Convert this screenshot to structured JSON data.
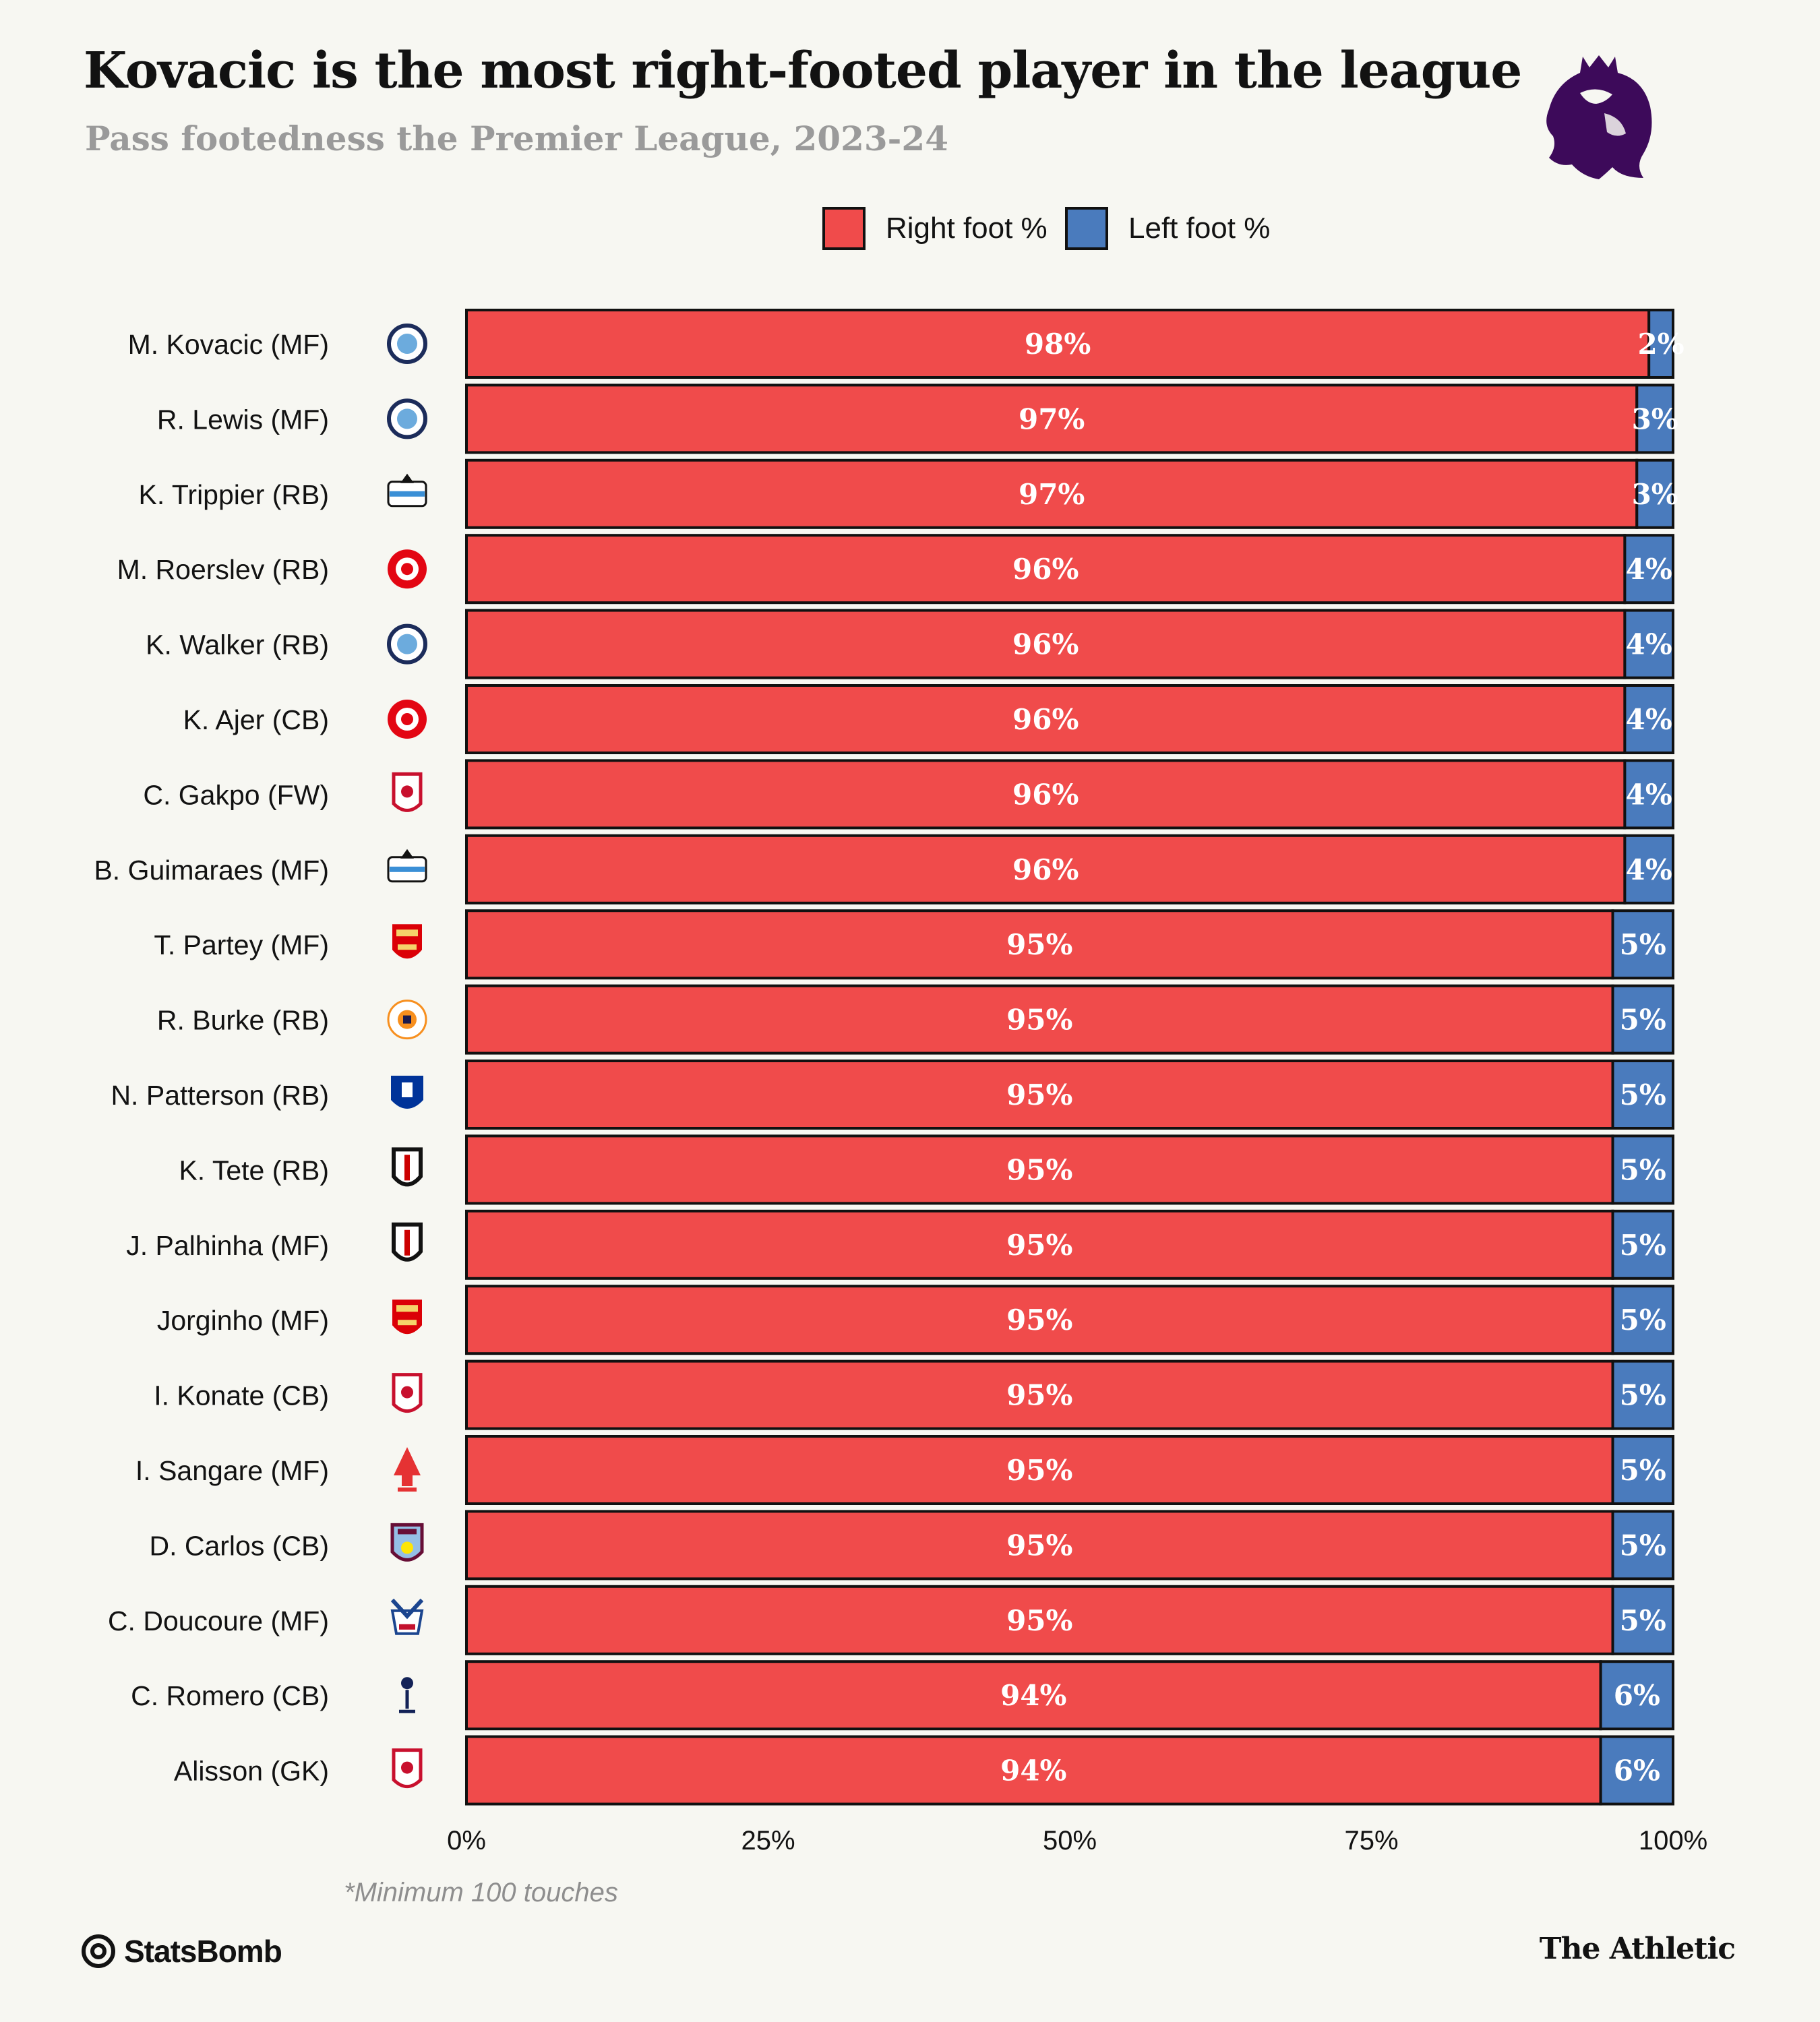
{
  "header": {
    "title": "Kovacic is the most right-footed player in the league",
    "subtitle": "Pass footedness the Premier League, 2023-24"
  },
  "legend": {
    "right_label": "Right foot %",
    "left_label": "Left foot %"
  },
  "colors": {
    "right": "#f04b4b",
    "left": "#4a7bbd",
    "background": "#f7f7f2",
    "premier_league_purple": "#3d0a5a"
  },
  "chart_data": {
    "type": "bar",
    "orientation": "horizontal",
    "stacked": true,
    "categories": [
      "M. Kovacic (MF)",
      "R. Lewis (MF)",
      "K. Trippier (RB)",
      "M. Roerslev (RB)",
      "K. Walker (RB)",
      "K. Ajer (CB)",
      "C. Gakpo (FW)",
      "B. Guimaraes (MF)",
      "T. Partey (MF)",
      "R. Burke (RB)",
      "N. Patterson (RB)",
      "K. Tete (RB)",
      "J. Palhinha (MF)",
      "Jorginho (MF)",
      "I. Konate (CB)",
      "I. Sangare (MF)",
      "D. Carlos (CB)",
      "C. Doucoure (MF)",
      "C. Romero (CB)",
      "Alisson (GK)"
    ],
    "clubs": [
      "Manchester City",
      "Manchester City",
      "Newcastle",
      "Brentford",
      "Manchester City",
      "Brentford",
      "Liverpool",
      "Newcastle",
      "Arsenal",
      "Luton Town",
      "Everton",
      "Fulham",
      "Fulham",
      "Arsenal",
      "Liverpool",
      "Nottingham Forest",
      "Aston Villa",
      "Crystal Palace",
      "Tottenham",
      "Liverpool"
    ],
    "series": [
      {
        "name": "Right foot %",
        "values": [
          98,
          97,
          97,
          96,
          96,
          96,
          96,
          96,
          95,
          95,
          95,
          95,
          95,
          95,
          95,
          95,
          95,
          95,
          94,
          94
        ]
      },
      {
        "name": "Left foot %",
        "values": [
          2,
          3,
          3,
          4,
          4,
          4,
          4,
          4,
          5,
          5,
          5,
          5,
          5,
          5,
          5,
          5,
          5,
          5,
          6,
          6
        ]
      }
    ],
    "xlim": [
      0,
      100
    ],
    "xticks": [
      "0%",
      "25%",
      "50%",
      "75%",
      "100%"
    ],
    "legend_position": "top-center",
    "grid": false
  },
  "footnote": "*Minimum 100 touches",
  "footer": {
    "left_brand": "StatsBomb",
    "right_brand": "The Athletic"
  }
}
